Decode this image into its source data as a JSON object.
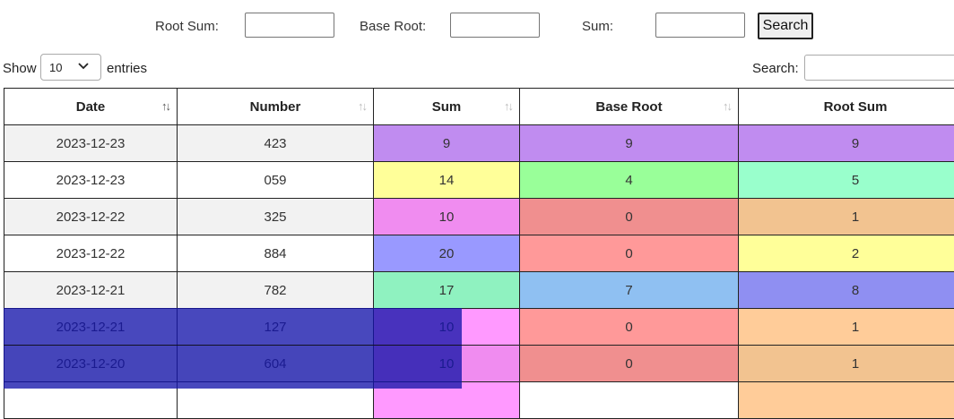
{
  "filters": {
    "root_sum_label": "Root Sum:",
    "base_root_label": "Base Root:",
    "sum_label": "Sum:",
    "search_button": "Search",
    "root_sum_value": "",
    "base_root_value": "",
    "sum_value": ""
  },
  "controls": {
    "show_label": "Show",
    "length_value": "10",
    "entries_label": "entries",
    "search_label": "Search:",
    "search_value": ""
  },
  "table": {
    "columns": [
      "Date",
      "Number",
      "Sum",
      "Base Root",
      "Root Sum"
    ],
    "sorted_column": "Date",
    "rows": [
      {
        "date": "2023-12-23",
        "number": "423",
        "sum": "9",
        "base_root": "9",
        "root_sum": "9",
        "colors": [
          "#c08cf0",
          "#c08cf0",
          "#c08cf0"
        ]
      },
      {
        "date": "2023-12-23",
        "number": "059",
        "sum": "14",
        "base_root": "4",
        "root_sum": "5",
        "colors": [
          "#ffff99",
          "#99ff99",
          "#99ffcc"
        ]
      },
      {
        "date": "2023-12-22",
        "number": "325",
        "sum": "10",
        "base_root": "0",
        "root_sum": "1",
        "colors": [
          "#f08cf0",
          "#f08f8f",
          "#f2c390"
        ]
      },
      {
        "date": "2023-12-22",
        "number": "884",
        "sum": "20",
        "base_root": "0",
        "root_sum": "2",
        "colors": [
          "#9999ff",
          "#ff9999",
          "#ffff99"
        ]
      },
      {
        "date": "2023-12-21",
        "number": "782",
        "sum": "17",
        "base_root": "7",
        "root_sum": "8",
        "colors": [
          "#8ff2c0",
          "#8fc0f2",
          "#8f8ff2"
        ]
      },
      {
        "date": "2023-12-21",
        "number": "127",
        "sum": "10",
        "base_root": "0",
        "root_sum": "1",
        "colors": [
          "#ff99ff",
          "#ff9999",
          "#ffcc99"
        ]
      },
      {
        "date": "2023-12-20",
        "number": "604",
        "sum": "10",
        "base_root": "0",
        "root_sum": "1",
        "colors": [
          "#f08cf0",
          "#f08f8f",
          "#f2c390"
        ]
      },
      {
        "date": "",
        "number": "",
        "sum": "",
        "base_root": "",
        "root_sum": "",
        "colors": [
          "#ff99ff",
          "#ffffff",
          "#ffcc99"
        ]
      }
    ]
  }
}
